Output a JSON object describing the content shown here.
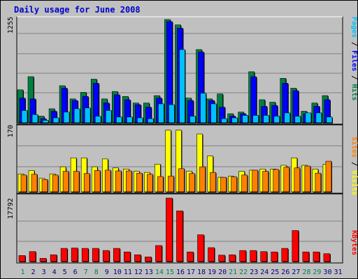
{
  "title": "Daily usage for June 2008",
  "colors": {
    "hits": "#008040",
    "files": "#0000ff",
    "pages": "#00c0ff",
    "visits": "#ffff00",
    "sites": "#ff8000",
    "kbytes": "#ff0000"
  },
  "chart_data": [
    {
      "type": "bar",
      "name": "top-panel",
      "y_max_label": "1255",
      "ylim": [
        0,
        1255
      ],
      "categories": [
        "1",
        "2",
        "3",
        "4",
        "5",
        "6",
        "7",
        "8",
        "9",
        "10",
        "11",
        "12",
        "13",
        "14",
        "15",
        "16",
        "17",
        "18",
        "19",
        "20",
        "21",
        "22",
        "23",
        "24",
        "25",
        "26",
        "27",
        "28",
        "29",
        "30",
        "31"
      ],
      "series": [
        {
          "name": "Hits",
          "values": [
            400,
            560,
            80,
            170,
            450,
            290,
            370,
            530,
            290,
            380,
            320,
            240,
            240,
            330,
            1255,
            1190,
            300,
            890,
            290,
            350,
            110,
            130,
            620,
            280,
            250,
            540,
            420,
            140,
            240,
            330,
            0
          ]
        },
        {
          "name": "Files",
          "values": [
            300,
            290,
            50,
            140,
            420,
            270,
            320,
            480,
            240,
            340,
            280,
            220,
            190,
            300,
            1230,
            1150,
            270,
            860,
            270,
            190,
            80,
            110,
            560,
            200,
            210,
            480,
            390,
            110,
            200,
            280,
            0
          ]
        },
        {
          "name": "Pages",
          "values": [
            150,
            100,
            30,
            60,
            130,
            170,
            180,
            80,
            150,
            70,
            70,
            60,
            50,
            230,
            220,
            890,
            80,
            360,
            230,
            50,
            60,
            90,
            90,
            90,
            80,
            120,
            80,
            120,
            120,
            70,
            0
          ]
        }
      ],
      "legend": [
        "Pages",
        "Files",
        "Hits"
      ]
    },
    {
      "type": "bar",
      "name": "middle-panel",
      "y_max_label": "170",
      "ylim": [
        0,
        170
      ],
      "categories": [
        "1",
        "2",
        "3",
        "4",
        "5",
        "6",
        "7",
        "8",
        "9",
        "10",
        "11",
        "12",
        "13",
        "14",
        "15",
        "16",
        "17",
        "18",
        "19",
        "20",
        "21",
        "22",
        "23",
        "24",
        "25",
        "26",
        "27",
        "28",
        "29",
        "30",
        "31"
      ],
      "series": [
        {
          "name": "Visits",
          "values": [
            48,
            57,
            36,
            48,
            67,
            91,
            91,
            67,
            88,
            64,
            61,
            55,
            52,
            74,
            165,
            165,
            55,
            155,
            96,
            39,
            42,
            55,
            58,
            61,
            61,
            71,
            91,
            71,
            61,
            74,
            0
          ]
        },
        {
          "name": "Sites",
          "values": [
            45,
            47,
            33,
            45,
            55,
            55,
            49,
            57,
            58,
            56,
            56,
            50,
            47,
            41,
            42,
            62,
            49,
            67,
            52,
            39,
            40,
            45,
            58,
            55,
            60,
            66,
            64,
            69,
            50,
            82,
            0
          ]
        }
      ],
      "legend": [
        "Sites",
        "Visits"
      ]
    },
    {
      "type": "bar",
      "name": "bottom-panel",
      "y_max_label": "17792",
      "ylim": [
        0,
        17792
      ],
      "categories": [
        "1",
        "2",
        "3",
        "4",
        "5",
        "6",
        "7",
        "8",
        "9",
        "10",
        "11",
        "12",
        "13",
        "14",
        "15",
        "16",
        "17",
        "18",
        "19",
        "20",
        "21",
        "22",
        "23",
        "24",
        "25",
        "26",
        "27",
        "28",
        "29",
        "30",
        "31"
      ],
      "series": [
        {
          "name": "KBytes",
          "values": [
            1700,
            2800,
            900,
            1900,
            3700,
            3800,
            3700,
            3700,
            3100,
            3700,
            2700,
            1900,
            1300,
            4500,
            17792,
            14200,
            2700,
            7500,
            3900,
            1800,
            1900,
            3100,
            3100,
            2800,
            2700,
            3700,
            8700,
            2700,
            2700,
            2200,
            0
          ]
        }
      ],
      "legend": [
        "KBytes"
      ]
    }
  ],
  "x_labels": [
    "1",
    "2",
    "3",
    "4",
    "5",
    "6",
    "7",
    "8",
    "9",
    "10",
    "11",
    "12",
    "13",
    "14",
    "15",
    "16",
    "17",
    "18",
    "19",
    "20",
    "21",
    "22",
    "23",
    "24",
    "25",
    "26",
    "27",
    "28",
    "29",
    "30",
    "31"
  ],
  "weekend_days": [
    "1",
    "7",
    "8",
    "14",
    "15",
    "21",
    "22",
    "28",
    "29"
  ],
  "weekend_label_color": "#00805a",
  "weekday_label_color": "#000080"
}
